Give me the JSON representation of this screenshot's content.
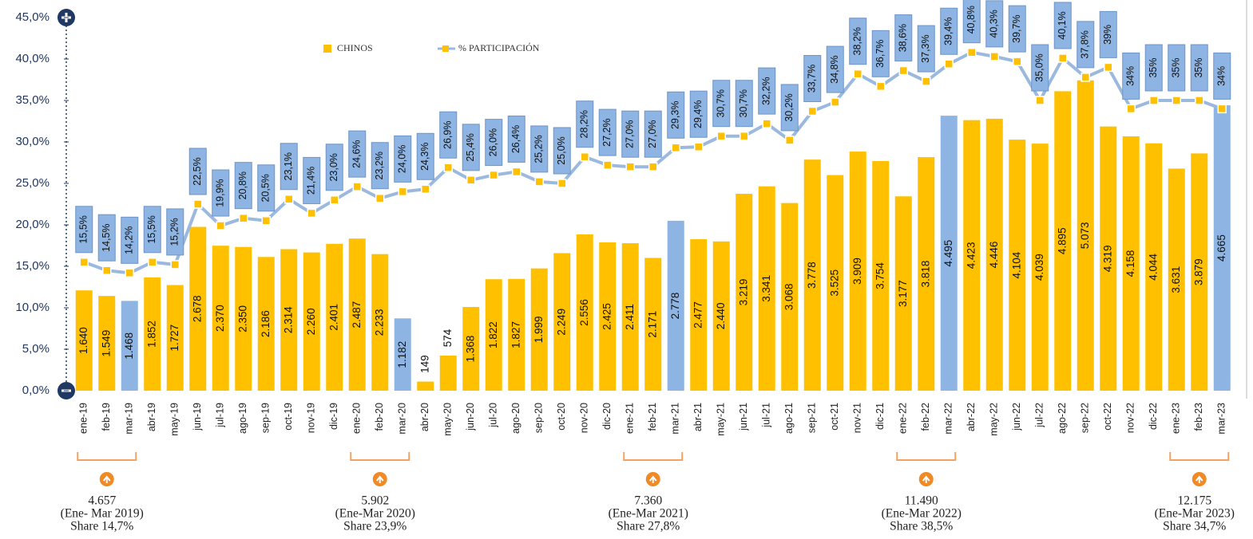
{
  "chart_data": {
    "type": "bar_line",
    "categories": [
      "ene-19",
      "feb-19",
      "mar-19",
      "abr-19",
      "may-19",
      "jun-19",
      "jul-19",
      "ago-19",
      "sep-19",
      "oct-19",
      "nov-19",
      "dic-19",
      "ene-20",
      "feb-20",
      "mar-20",
      "abr-20",
      "may-20",
      "jun-20",
      "jul-20",
      "ago-20",
      "sep-20",
      "oct-20",
      "nov-20",
      "dic-20",
      "ene-21",
      "feb-21",
      "mar-21",
      "abr-21",
      "may-21",
      "jun-21",
      "jul-21",
      "ago-21",
      "sep-21",
      "oct-21",
      "nov-21",
      "dic-21",
      "ene-22",
      "feb-22",
      "mar-22",
      "abr-22",
      "may-22",
      "jun-22",
      "jul-22",
      "ago-22",
      "sep-22",
      "oct-22",
      "nov-22",
      "dic-22",
      "ene-23",
      "feb-23",
      "mar-23"
    ],
    "series": [
      {
        "name": "CHINOS",
        "type": "bar",
        "axis": "y2",
        "color": "#FFC000",
        "colors": [
          "#FFC000",
          "#FFC000",
          "#8DB4E2",
          "#FFC000",
          "#FFC000",
          "#FFC000",
          "#FFC000",
          "#FFC000",
          "#FFC000",
          "#FFC000",
          "#FFC000",
          "#FFC000",
          "#FFC000",
          "#FFC000",
          "#8DB4E2",
          "#FFC000",
          "#FFC000",
          "#FFC000",
          "#FFC000",
          "#FFC000",
          "#FFC000",
          "#FFC000",
          "#FFC000",
          "#FFC000",
          "#FFC000",
          "#FFC000",
          "#8DB4E2",
          "#FFC000",
          "#FFC000",
          "#FFC000",
          "#FFC000",
          "#FFC000",
          "#FFC000",
          "#FFC000",
          "#FFC000",
          "#FFC000",
          "#FFC000",
          "#FFC000",
          "#8DB4E2",
          "#FFC000",
          "#FFC000",
          "#FFC000",
          "#FFC000",
          "#FFC000",
          "#FFC000",
          "#FFC000",
          "#FFC000",
          "#FFC000",
          "#FFC000",
          "#FFC000",
          "#8DB4E2"
        ],
        "values": [
          1640,
          1549,
          1468,
          1852,
          1727,
          2678,
          2370,
          2350,
          2186,
          2314,
          2260,
          2401,
          2487,
          2233,
          1182,
          149,
          574,
          1368,
          1822,
          1827,
          1999,
          2249,
          2556,
          2425,
          2411,
          2171,
          2778,
          2477,
          2440,
          3219,
          3341,
          3068,
          3778,
          3525,
          3909,
          3754,
          3177,
          3818,
          4495,
          4423,
          4446,
          4104,
          4039,
          4895,
          5073,
          4319,
          4158,
          4044,
          3631,
          3879,
          4665
        ],
        "value_labels": [
          "1.640",
          "1.549",
          "1.468",
          "1.852",
          "1.727",
          "2.678",
          "2.370",
          "2.350",
          "2.186",
          "2.314",
          "2.260",
          "2.401",
          "2.487",
          "2.233",
          "1.182",
          "149",
          "574",
          "1.368",
          "1.822",
          "1.827",
          "1.999",
          "2.249",
          "2.556",
          "2.425",
          "2.411",
          "2.171",
          "2.778",
          "2.477",
          "2.440",
          "3.219",
          "3.341",
          "3.068",
          "3.778",
          "3.525",
          "3.909",
          "3.754",
          "3.177",
          "3.818",
          "4.495",
          "4.423",
          "4.446",
          "4.104",
          "4.039",
          "4.895",
          "5.073",
          "4.319",
          "4.158",
          "4.044",
          "3.631",
          "3.879",
          "4.665"
        ]
      },
      {
        "name": "% PARTICIPACIÓN",
        "type": "line",
        "color": "#9BB9DF",
        "marker_color": "#FFC000",
        "label_box_color": "#8DB4E2",
        "values": [
          15.5,
          14.5,
          14.2,
          15.5,
          15.2,
          22.5,
          19.9,
          20.8,
          20.5,
          23.1,
          21.4,
          23.0,
          24.6,
          23.2,
          24.0,
          24.3,
          26.9,
          25.4,
          26.0,
          26.4,
          25.2,
          25.0,
          28.2,
          27.2,
          27.0,
          27.0,
          29.3,
          29.4,
          30.7,
          30.7,
          32.2,
          30.2,
          33.7,
          34.8,
          38.2,
          36.7,
          38.6,
          37.3,
          39.4,
          40.8,
          40.3,
          39.7,
          35.0,
          40.1,
          37.8,
          39,
          34,
          35,
          35,
          35,
          34
        ],
        "value_labels": [
          "15,5%",
          "14,5%",
          "14,2%",
          "15,5%",
          "15,2%",
          "22,5%",
          "19,9%",
          "20,8%",
          "20,5%",
          "23,1%",
          "21,4%",
          "23,0%",
          "24,6%",
          "23,2%",
          "24,0%",
          "24,3%",
          "26,9%",
          "25,4%",
          "26,0%",
          "26,4%",
          "25,2%",
          "25,0%",
          "28,2%",
          "27,2%",
          "27,0%",
          "27,0%",
          "29,3%",
          "29,4%",
          "30,7%",
          "30,7%",
          "32,2%",
          "30,2%",
          "33,7%",
          "34,8%",
          "38,2%",
          "36,7%",
          "38,6%",
          "37,3%",
          "39,4%",
          "40,8%",
          "40,3%",
          "39,7%",
          "35,0%",
          "40,1%",
          "37,8%",
          "39%",
          "34%",
          "35%",
          "35%",
          "35%",
          "34%"
        ]
      }
    ],
    "ylim": [
      0,
      45
    ],
    "yticks": [
      {
        "value": 0,
        "label": "0,0%"
      },
      {
        "value": 5,
        "label": "5,0%"
      },
      {
        "value": 10,
        "label": "10,0%"
      },
      {
        "value": 15,
        "label": "15,0%"
      },
      {
        "value": 20,
        "label": "20,0%"
      },
      {
        "value": 25,
        "label": "25,0%"
      },
      {
        "value": 30,
        "label": "30,0%"
      },
      {
        "value": 35,
        "label": "35,0%"
      },
      {
        "value": 40,
        "label": "40,0%"
      },
      {
        "value": 45,
        "label": "45,0%"
      }
    ],
    "y2lim": [
      0,
      6100
    ],
    "legend": "top",
    "annotations": [
      {
        "lines": [
          "4.657",
          "(Ene- Mar 2019)",
          "Share 14,7%"
        ]
      },
      {
        "lines": [
          "5.902",
          "(Ene-Mar 2020)",
          "Share 23,9%"
        ]
      },
      {
        "lines": [
          "7.360",
          "(Ene-Mar 2021)",
          "Share 27,8%"
        ]
      },
      {
        "lines": [
          "11.490",
          "(Ene-Mar 2022)",
          "Share 38,5%"
        ]
      },
      {
        "lines": [
          "12.175",
          "(Ene-Mar 2023)",
          "Share 34,7%"
        ]
      }
    ]
  }
}
